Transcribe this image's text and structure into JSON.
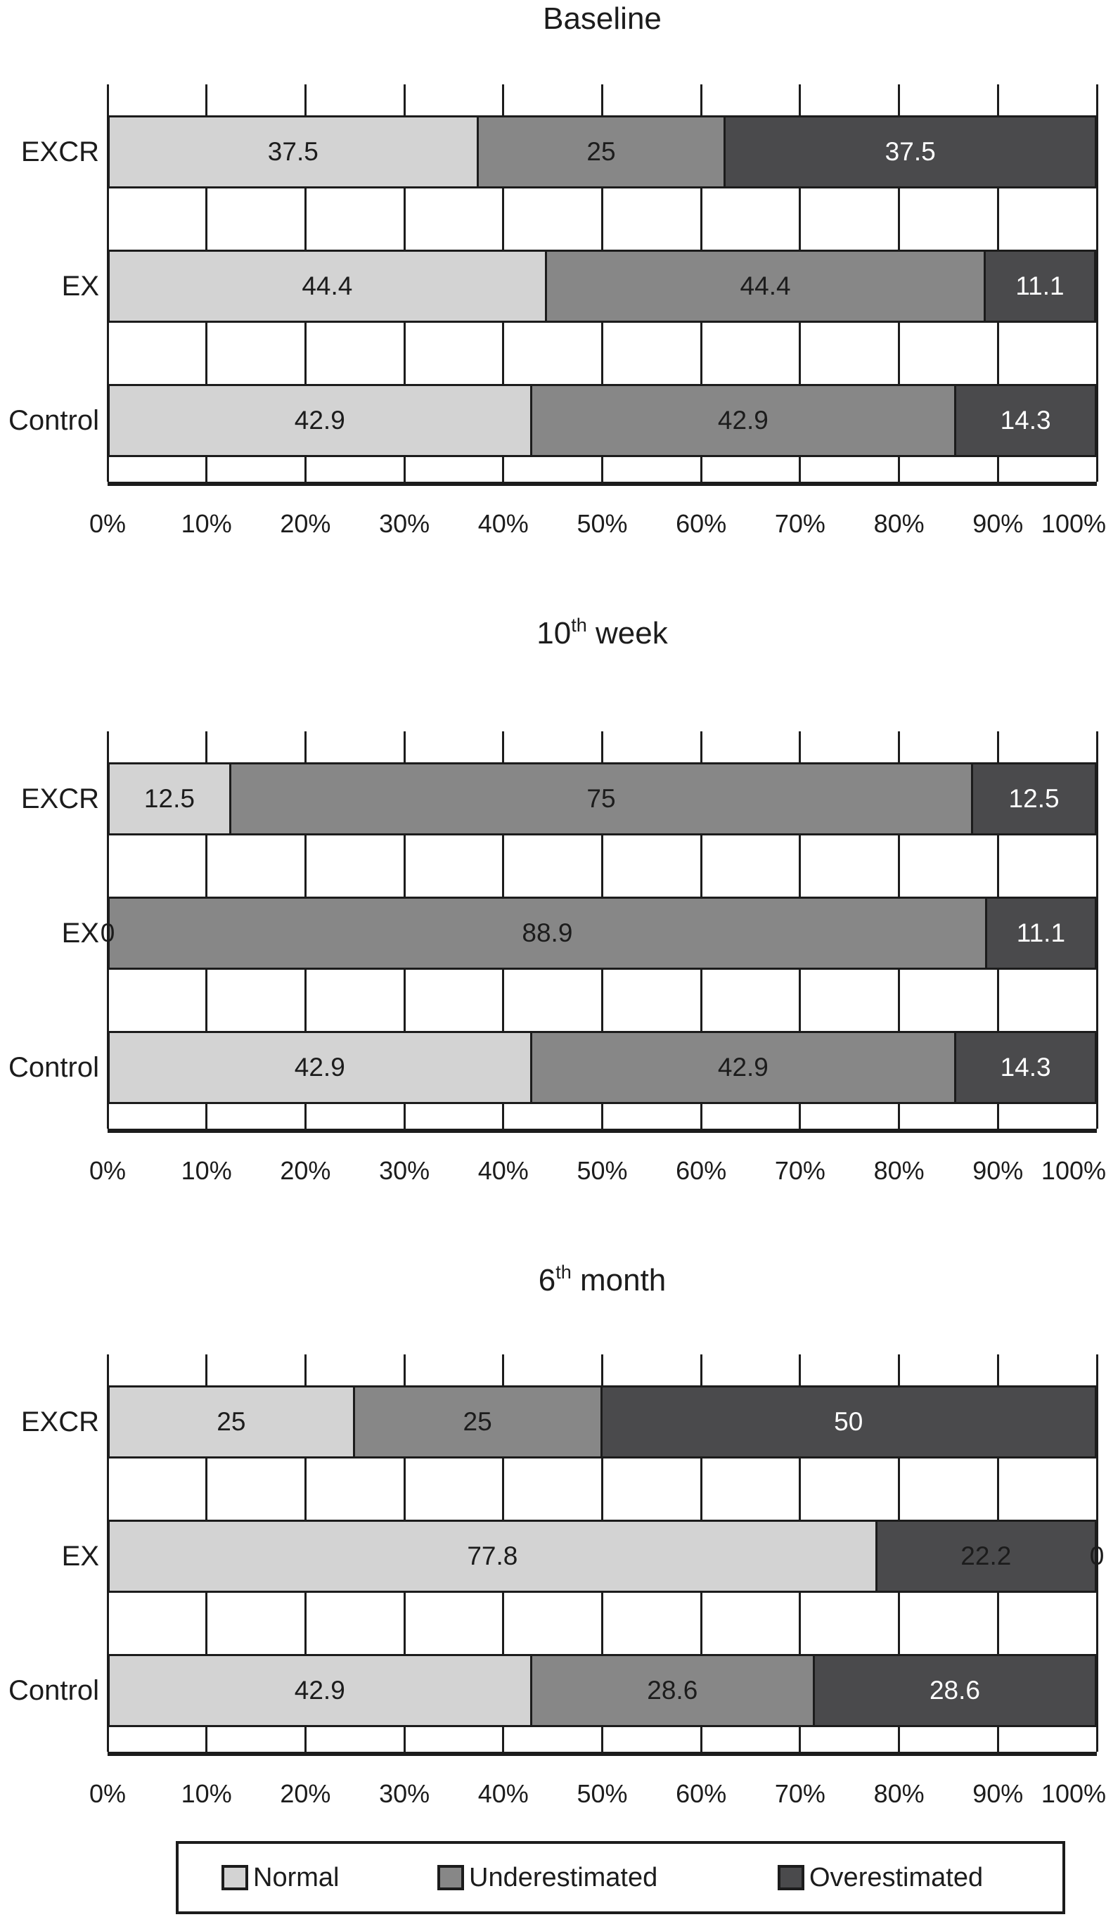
{
  "colors": {
    "light": "#d3d3d3",
    "mid": "#878787",
    "dark": "#4a4a4c",
    "line": "#1c1c1c",
    "label_dark": "#1c1c1c",
    "label_light": "#ffffff"
  },
  "legend": {
    "items": [
      {
        "label": "Normal",
        "shade": "light"
      },
      {
        "label": "Underestimated",
        "shade": "mid"
      },
      {
        "label": "Overestimated",
        "shade": "dark"
      }
    ]
  },
  "chart_data": [
    {
      "type": "bar",
      "orientation": "horizontal",
      "stacked": true,
      "title": {
        "base": "Baseline",
        "sup": "",
        "rest": ""
      },
      "xlim": [
        0,
        100
      ],
      "x_tick_labels": [
        "0%",
        "10%",
        "20%",
        "30%",
        "40%",
        "50%",
        "60%",
        "70%",
        "80%",
        "90%",
        "100%"
      ],
      "categories": [
        "EXCR",
        "EX",
        "Control"
      ],
      "series": [
        "Normal",
        "Underestimated",
        "Overestimated"
      ],
      "rows": [
        {
          "category": "EXCR",
          "segments": [
            {
              "value": 37.5,
              "label": "37.5",
              "shade": "light",
              "text": "dark"
            },
            {
              "value": 25,
              "label": "25",
              "shade": "mid",
              "text": "dark"
            },
            {
              "value": 37.5,
              "label": "37.5",
              "shade": "dark",
              "text": "light"
            }
          ]
        },
        {
          "category": "EX",
          "segments": [
            {
              "value": 44.4,
              "label": "44.4",
              "shade": "light",
              "text": "dark"
            },
            {
              "value": 44.4,
              "label": "44.4",
              "shade": "mid",
              "text": "dark"
            },
            {
              "value": 11.1,
              "label": "11.1",
              "shade": "dark",
              "text": "light"
            }
          ]
        },
        {
          "category": "Control",
          "segments": [
            {
              "value": 42.9,
              "label": "42.9",
              "shade": "light",
              "text": "dark"
            },
            {
              "value": 42.9,
              "label": "42.9",
              "shade": "mid",
              "text": "dark"
            },
            {
              "value": 14.3,
              "label": "14.3",
              "shade": "dark",
              "text": "light"
            }
          ]
        }
      ]
    },
    {
      "type": "bar",
      "orientation": "horizontal",
      "stacked": true,
      "title": {
        "base": "10",
        "sup": "th",
        "rest": " week"
      },
      "xlim": [
        0,
        100
      ],
      "x_tick_labels": [
        "0%",
        "10%",
        "20%",
        "30%",
        "40%",
        "50%",
        "60%",
        "70%",
        "80%",
        "90%",
        "100%"
      ],
      "categories": [
        "EXCR",
        "EX",
        "Control"
      ],
      "series": [
        "Normal",
        "Underestimated",
        "Overestimated"
      ],
      "rows": [
        {
          "category": "EXCR",
          "segments": [
            {
              "value": 12.5,
              "label": "12.5",
              "shade": "light",
              "text": "dark"
            },
            {
              "value": 75,
              "label": "75",
              "shade": "mid",
              "text": "dark"
            },
            {
              "value": 12.5,
              "label": "12.5",
              "shade": "dark",
              "text": "light"
            }
          ]
        },
        {
          "category": "EX",
          "segments": [
            {
              "value": 0,
              "label": "0",
              "shade": "light",
              "text": "dark"
            },
            {
              "value": 88.9,
              "label": "88.9",
              "shade": "mid",
              "text": "dark"
            },
            {
              "value": 11.1,
              "label": "11.1",
              "shade": "dark",
              "text": "light"
            }
          ]
        },
        {
          "category": "Control",
          "segments": [
            {
              "value": 42.9,
              "label": "42.9",
              "shade": "light",
              "text": "dark"
            },
            {
              "value": 42.9,
              "label": "42.9",
              "shade": "mid",
              "text": "dark"
            },
            {
              "value": 14.3,
              "label": "14.3",
              "shade": "dark",
              "text": "light"
            }
          ]
        }
      ]
    },
    {
      "type": "bar",
      "orientation": "horizontal",
      "stacked": true,
      "title": {
        "base": "6",
        "sup": "th",
        "rest": " month"
      },
      "xlim": [
        0,
        100
      ],
      "x_tick_labels": [
        "0%",
        "10%",
        "20%",
        "30%",
        "40%",
        "50%",
        "60%",
        "70%",
        "80%",
        "90%",
        "100%"
      ],
      "categories": [
        "EXCR",
        "EX",
        "Control"
      ],
      "series": [
        "Normal",
        "Underestimated",
        "Overestimated"
      ],
      "rows": [
        {
          "category": "EXCR",
          "segments": [
            {
              "value": 25,
              "label": "25",
              "shade": "light",
              "text": "dark"
            },
            {
              "value": 25,
              "label": "25",
              "shade": "mid",
              "text": "dark"
            },
            {
              "value": 50,
              "label": "50",
              "shade": "dark",
              "text": "light"
            }
          ]
        },
        {
          "category": "EX",
          "segments": [
            {
              "value": 77.8,
              "label": "77.8",
              "shade": "light",
              "text": "dark"
            },
            {
              "value": 22.2,
              "label": "22.2",
              "shade": "dark",
              "text": "dark"
            },
            {
              "value": 0,
              "label": "0",
              "shade": "dark",
              "text": "dark"
            }
          ]
        },
        {
          "category": "Control",
          "segments": [
            {
              "value": 42.9,
              "label": "42.9",
              "shade": "light",
              "text": "dark"
            },
            {
              "value": 28.6,
              "label": "28.6",
              "shade": "mid",
              "text": "dark"
            },
            {
              "value": 28.6,
              "label": "28.6",
              "shade": "dark",
              "text": "light"
            }
          ]
        }
      ]
    }
  ]
}
